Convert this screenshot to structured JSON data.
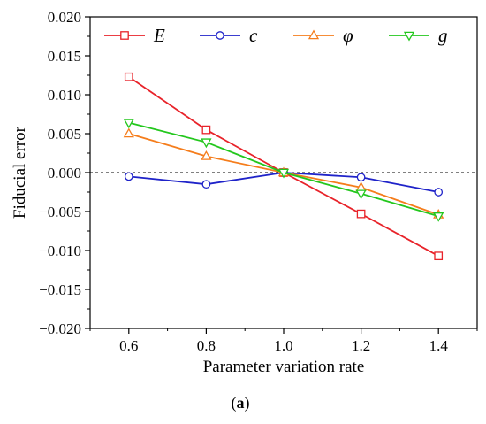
{
  "chart_data": {
    "type": "line",
    "xlabel": "Parameter variation rate",
    "ylabel": "Fiducial error",
    "xlim": [
      0.5,
      1.5
    ],
    "ylim": [
      -0.02,
      0.02
    ],
    "x_ticks": [
      "0.6",
      "0.8",
      "1.0",
      "1.2",
      "1.4"
    ],
    "y_ticks": [
      "0.020",
      "0.015",
      "0.010",
      "0.005",
      "0.000",
      "−0.005",
      "−0.010",
      "−0.015",
      "−0.020"
    ],
    "x": [
      0.6,
      0.8,
      1.0,
      1.2,
      1.4
    ],
    "reference_line": 0,
    "grid": false,
    "legend_position": "top",
    "series": [
      {
        "name": "E",
        "marker": "square",
        "color": "#e8232a",
        "values": [
          0.0123,
          0.0055,
          0.0,
          -0.0053,
          -0.0107
        ]
      },
      {
        "name": "c",
        "marker": "circle",
        "color": "#1f23c9",
        "values": [
          -0.0005,
          -0.0015,
          0.0,
          -0.0006,
          -0.0025
        ]
      },
      {
        "name": "φ",
        "marker": "triangle-up",
        "color": "#f57d1c",
        "values": [
          0.005,
          0.0021,
          0.0,
          -0.0019,
          -0.0054
        ]
      },
      {
        "name": "g",
        "marker": "triangle-down",
        "color": "#23c71d",
        "values": [
          0.0064,
          0.0039,
          0.0,
          -0.0027,
          -0.0056
        ]
      }
    ],
    "caption": {
      "label": "a"
    }
  }
}
